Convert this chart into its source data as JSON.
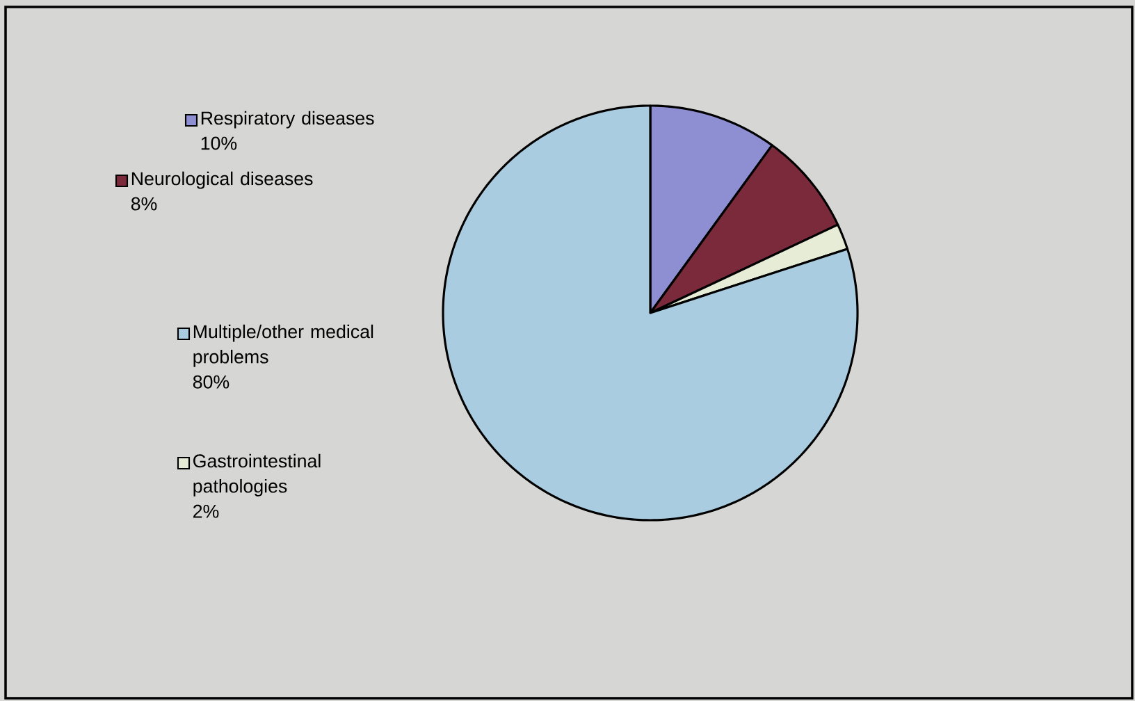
{
  "chart_data": {
    "type": "pie",
    "categories": [
      "Respiratory diseases",
      "Neurological diseases",
      "Gastrointestinal pathologies",
      "Multiple/other medical problems"
    ],
    "values": [
      10,
      8,
      2,
      80
    ],
    "value_labels": [
      "10%",
      "8%",
      "2%",
      "80%"
    ],
    "colors": [
      "#8e8ed2",
      "#7b2a3c",
      "#e6ecd6",
      "#a9cce0"
    ],
    "legend": "left"
  }
}
